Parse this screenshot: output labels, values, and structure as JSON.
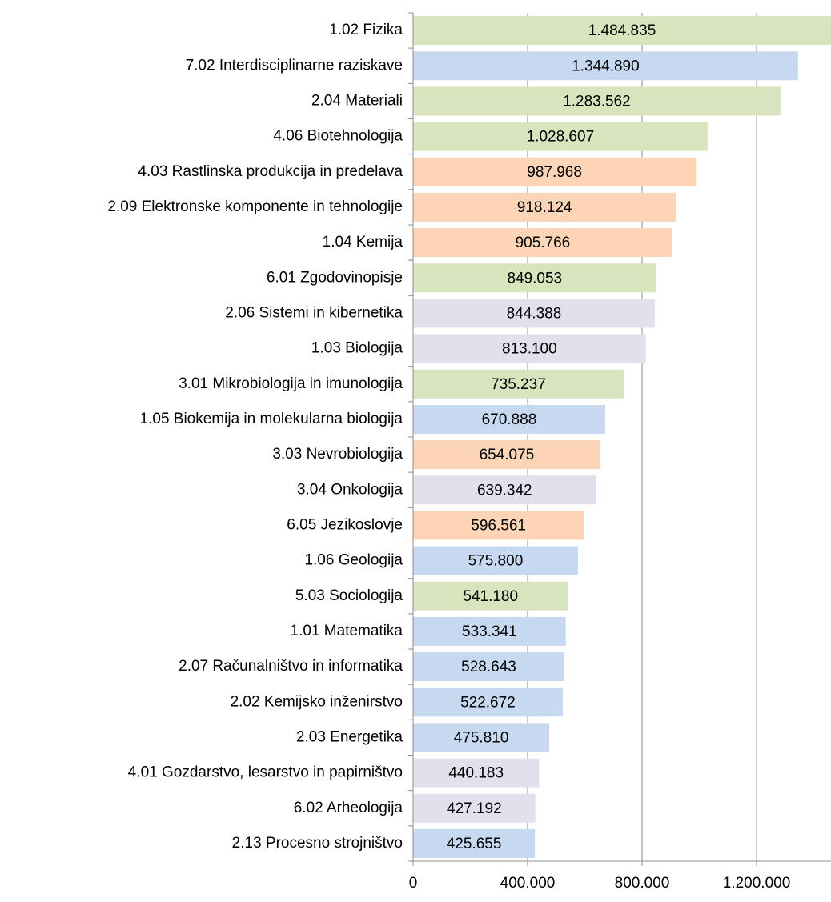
{
  "chart_data": {
    "type": "barh",
    "categories": [
      "1.02 Fizika",
      "7.02 Interdisciplinarne raziskave",
      "2.04 Materiali",
      "4.06 Biotehnologija",
      "4.03 Rastlinska produkcija in predelava",
      "2.09 Elektronske komponente in tehnologije",
      "1.04 Kemija",
      "6.01 Zgodovinopisje",
      "2.06 Sistemi in kibernetika",
      "1.03 Biologija",
      "3.01 Mikrobiologija in imunologija",
      "1.05 Biokemija in molekularna biologija",
      "3.03 Nevrobiologija",
      "3.04 Onkologija",
      "6.05 Jezikoslovje",
      "1.06 Geologija",
      "5.03 Sociologija",
      "1.01 Matematika",
      "2.07 Računalništvo in informatika",
      "2.02 Kemijsko inženirstvo",
      "2.03 Energetika",
      "4.01 Gozdarstvo, lesarstvo in papirništvo",
      "6.02 Arheologija",
      "2.13 Procesno strojništvo"
    ],
    "values": [
      1484835,
      1344890,
      1283562,
      1028607,
      987968,
      918124,
      905766,
      849053,
      844388,
      813100,
      735237,
      670888,
      654075,
      639342,
      596561,
      575800,
      541180,
      533341,
      528643,
      522672,
      475810,
      440183,
      427192,
      425655
    ],
    "value_labels": [
      "1.484.835",
      "1.344.890",
      "1.283.562",
      "1.028.607",
      "987.968",
      "918.124",
      "905.766",
      "849.053",
      "844.388",
      "813.100",
      "735.237",
      "670.888",
      "654.075",
      "639.342",
      "596.561",
      "575.800",
      "541.180",
      "533.341",
      "528.643",
      "522.672",
      "475.810",
      "440.183",
      "427.192",
      "425.655"
    ],
    "colors": [
      "#d7e4bd",
      "#c6d9f1",
      "#d7e4bd",
      "#d7e4bd",
      "#fbd5b5",
      "#fbd5b5",
      "#fbd5b5",
      "#d7e4bd",
      "#e4dfec",
      "#e4dfec",
      "#d7e4bd",
      "#c6d9f1",
      "#fbd5b5",
      "#e4dfec",
      "#fbd5b5",
      "#c6d9f1",
      "#d7e4bd",
      "#c6d9f1",
      "#c6d9f1",
      "#c6d9f1",
      "#c6d9f1",
      "#e4dfec",
      "#e4dfec",
      "#c6d9f1"
    ],
    "xlim": [
      0,
      1460000
    ],
    "xticks": [
      0,
      {
        "value": 400000,
        "label": "400.000"
      },
      {
        "value": 800000,
        "label": "800.000"
      },
      {
        "value": 1200000,
        "label": "1.200.000"
      }
    ],
    "grid": true
  }
}
